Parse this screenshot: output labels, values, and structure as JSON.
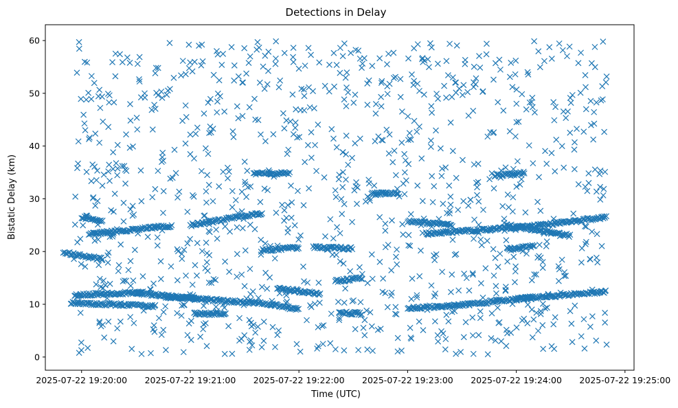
{
  "chart_data": {
    "type": "scatter",
    "title": "Detections in Delay",
    "xlabel": "Time (UTC)",
    "ylabel": "Bistatic Delay (km)",
    "x_tick_labels": [
      "2025-07-22 19:20:00",
      "2025-07-22 19:21:00",
      "2025-07-22 19:22:00",
      "2025-07-22 19:23:00",
      "2025-07-22 19:24:00",
      "2025-07-22 19:25:00"
    ],
    "y_tick_labels": [
      "0",
      "10",
      "20",
      "30",
      "40",
      "50",
      "60"
    ],
    "xlim": [
      "2025-07-22 19:19:40",
      "2025-07-22 19:25:05"
    ],
    "ylim": [
      -2.5,
      63
    ],
    "marker": "x",
    "color": "#1f77b4",
    "grid": false,
    "series_tracks": [
      {
        "start": "2025-07-22 19:19:50",
        "end": "2025-07-22 19:20:12",
        "y_start": 19.8,
        "y_end": 18.5
      },
      {
        "start": "2025-07-22 19:19:56",
        "end": "2025-07-22 19:20:34",
        "y_start": 11.7,
        "y_end": 12.3
      },
      {
        "start": "2025-07-22 19:19:54",
        "end": "2025-07-22 19:20:41",
        "y_start": 10.3,
        "y_end": 9.6
      },
      {
        "start": "2025-07-22 19:20:00",
        "end": "2025-07-22 19:20:12",
        "y_start": 26.5,
        "y_end": 25.8
      },
      {
        "start": "2025-07-22 19:20:04",
        "end": "2025-07-22 19:20:50",
        "y_start": 23.3,
        "y_end": 24.9
      },
      {
        "start": "2025-07-22 19:20:30",
        "end": "2025-07-22 19:21:05",
        "y_start": 12.2,
        "y_end": 11.0
      },
      {
        "start": "2025-07-22 19:20:45",
        "end": "2025-07-22 19:21:45",
        "y_start": 11.5,
        "y_end": 10.0
      },
      {
        "start": "2025-07-22 19:21:00",
        "end": "2025-07-22 19:21:40",
        "y_start": 25.0,
        "y_end": 27.3
      },
      {
        "start": "2025-07-22 19:21:02",
        "end": "2025-07-22 19:21:20",
        "y_start": 8.2,
        "y_end": 8.2
      },
      {
        "start": "2025-07-22 19:21:45",
        "end": "2025-07-22 19:22:00",
        "y_start": 10.0,
        "y_end": 9.0
      },
      {
        "start": "2025-07-22 19:21:35",
        "end": "2025-07-22 19:21:55",
        "y_start": 34.8,
        "y_end": 34.8
      },
      {
        "start": "2025-07-22 19:21:40",
        "end": "2025-07-22 19:22:00",
        "y_start": 20.2,
        "y_end": 20.8
      },
      {
        "start": "2025-07-22 19:21:48",
        "end": "2025-07-22 19:22:12",
        "y_start": 13.0,
        "y_end": 12.0
      },
      {
        "start": "2025-07-22 19:22:08",
        "end": "2025-07-22 19:22:30",
        "y_start": 20.8,
        "y_end": 20.6
      },
      {
        "start": "2025-07-22 19:22:20",
        "end": "2025-07-22 19:22:35",
        "y_start": 14.4,
        "y_end": 15.0
      },
      {
        "start": "2025-07-22 19:22:22",
        "end": "2025-07-22 19:22:35",
        "y_start": 8.4,
        "y_end": 8.2
      },
      {
        "start": "2025-07-22 19:22:40",
        "end": "2025-07-22 19:22:55",
        "y_start": 31.0,
        "y_end": 31.0
      },
      {
        "start": "2025-07-22 19:23:00",
        "end": "2025-07-22 19:23:25",
        "y_start": 25.8,
        "y_end": 25.0
      },
      {
        "start": "2025-07-22 19:23:00",
        "end": "2025-07-22 19:23:45",
        "y_start": 9.2,
        "y_end": 10.3
      },
      {
        "start": "2025-07-22 19:23:10",
        "end": "2025-07-22 19:24:10",
        "y_start": 23.4,
        "y_end": 24.8
      },
      {
        "start": "2025-07-22 19:23:45",
        "end": "2025-07-22 19:24:10",
        "y_start": 10.5,
        "y_end": 11.3
      },
      {
        "start": "2025-07-22 19:23:48",
        "end": "2025-07-22 19:24:05",
        "y_start": 34.4,
        "y_end": 34.9
      },
      {
        "start": "2025-07-22 19:23:55",
        "end": "2025-07-22 19:24:30",
        "y_start": 25.0,
        "y_end": 23.0
      },
      {
        "start": "2025-07-22 19:23:55",
        "end": "2025-07-22 19:24:10",
        "y_start": 20.5,
        "y_end": 21.0
      },
      {
        "start": "2025-07-22 19:24:00",
        "end": "2025-07-22 19:24:50",
        "y_start": 11.0,
        "y_end": 12.4
      },
      {
        "start": "2025-07-22 19:24:10",
        "end": "2025-07-22 19:24:50",
        "y_start": 24.9,
        "y_end": 26.5
      }
    ],
    "noise_detections": {
      "x_range": [
        "2025-07-22 19:19:55",
        "2025-07-22 19:24:50"
      ],
      "y_range": [
        0.5,
        60
      ],
      "approx_count": 1100
    }
  }
}
